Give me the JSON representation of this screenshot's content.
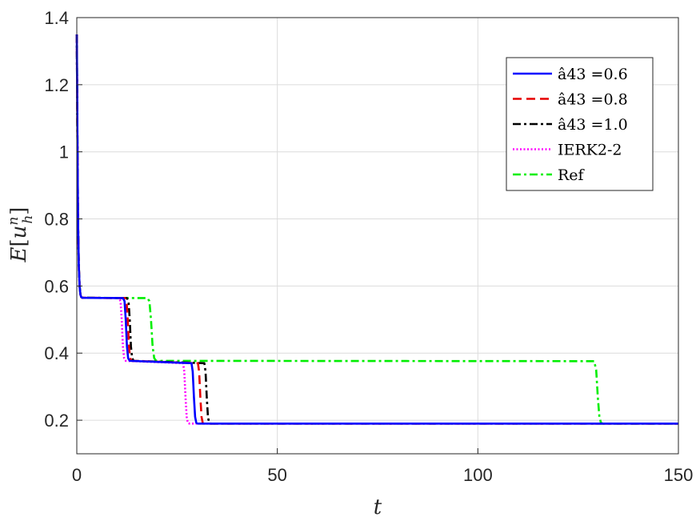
{
  "chart_data": {
    "type": "line",
    "xlabel": "t",
    "ylabel": "E[u_h^n]",
    "xlim": [
      0,
      150
    ],
    "ylim": [
      0.1,
      1.4
    ],
    "x_ticks": [
      "0",
      "50",
      "100",
      "150"
    ],
    "y_ticks": [
      "0.2",
      "0.4",
      "0.6",
      "0.8",
      "1",
      "1.2",
      "1.4"
    ],
    "grid": true,
    "legend_position": "top-right",
    "series": [
      {
        "name": "â43 =0.6",
        "color": "#0000ff",
        "style": "solid",
        "x": [
          0,
          0.15,
          0.3,
          0.5,
          0.7,
          0.9,
          1.1,
          1.4,
          11.5,
          11.9,
          12.2,
          12.5,
          12.8,
          13.2,
          28.6,
          28.9,
          29.2,
          29.5,
          29.8,
          30.2,
          150
        ],
        "y": [
          1.35,
          1.05,
          0.8,
          0.66,
          0.6,
          0.575,
          0.567,
          0.565,
          0.564,
          0.555,
          0.5,
          0.42,
          0.385,
          0.377,
          0.37,
          0.345,
          0.27,
          0.21,
          0.192,
          0.19,
          0.19
        ]
      },
      {
        "name": "â43 =0.8",
        "color": "#e60000",
        "style": "dashed",
        "x": [
          0,
          0.15,
          0.3,
          0.5,
          0.7,
          0.9,
          1.1,
          1.4,
          12.0,
          12.4,
          12.7,
          13.0,
          13.3,
          13.7,
          30.2,
          30.5,
          30.8,
          31.1,
          31.4,
          31.8,
          150
        ],
        "y": [
          1.35,
          1.05,
          0.8,
          0.66,
          0.6,
          0.575,
          0.567,
          0.565,
          0.564,
          0.555,
          0.5,
          0.42,
          0.385,
          0.377,
          0.37,
          0.345,
          0.27,
          0.21,
          0.192,
          0.19,
          0.19
        ]
      },
      {
        "name": "â43 =1.0",
        "color": "#000000",
        "style": "dashdot",
        "x": [
          0,
          0.15,
          0.3,
          0.5,
          0.7,
          0.9,
          1.1,
          1.4,
          12.5,
          12.9,
          13.2,
          13.5,
          13.8,
          14.2,
          31.8,
          32.1,
          32.4,
          32.7,
          33.0,
          33.4,
          150
        ],
        "y": [
          1.35,
          1.05,
          0.8,
          0.66,
          0.6,
          0.575,
          0.567,
          0.565,
          0.564,
          0.555,
          0.5,
          0.42,
          0.385,
          0.377,
          0.37,
          0.345,
          0.27,
          0.21,
          0.192,
          0.19,
          0.19
        ]
      },
      {
        "name": "IERK2-2",
        "color": "#ff00ff",
        "style": "dotted",
        "x": [
          0,
          0.15,
          0.3,
          0.5,
          0.7,
          0.9,
          1.1,
          1.4,
          10.5,
          10.9,
          11.2,
          11.5,
          11.8,
          12.2,
          26.5,
          26.8,
          27.1,
          27.4,
          27.7,
          28.1,
          150
        ],
        "y": [
          1.35,
          1.05,
          0.8,
          0.66,
          0.6,
          0.575,
          0.567,
          0.565,
          0.564,
          0.555,
          0.5,
          0.42,
          0.385,
          0.377,
          0.37,
          0.345,
          0.27,
          0.21,
          0.192,
          0.19,
          0.19
        ]
      },
      {
        "name": "Ref",
        "color": "#00ee00",
        "style": "dashdot",
        "x": [
          0,
          0.15,
          0.3,
          0.5,
          0.7,
          0.9,
          1.1,
          1.4,
          17.6,
          18.1,
          18.5,
          18.9,
          19.3,
          19.8,
          129.0,
          129.5,
          129.9,
          130.3,
          130.7,
          131.2,
          150
        ],
        "y": [
          1.35,
          1.05,
          0.8,
          0.66,
          0.6,
          0.575,
          0.567,
          0.565,
          0.564,
          0.555,
          0.5,
          0.42,
          0.385,
          0.377,
          0.376,
          0.35,
          0.27,
          0.21,
          0.192,
          0.19,
          0.19
        ]
      }
    ]
  }
}
